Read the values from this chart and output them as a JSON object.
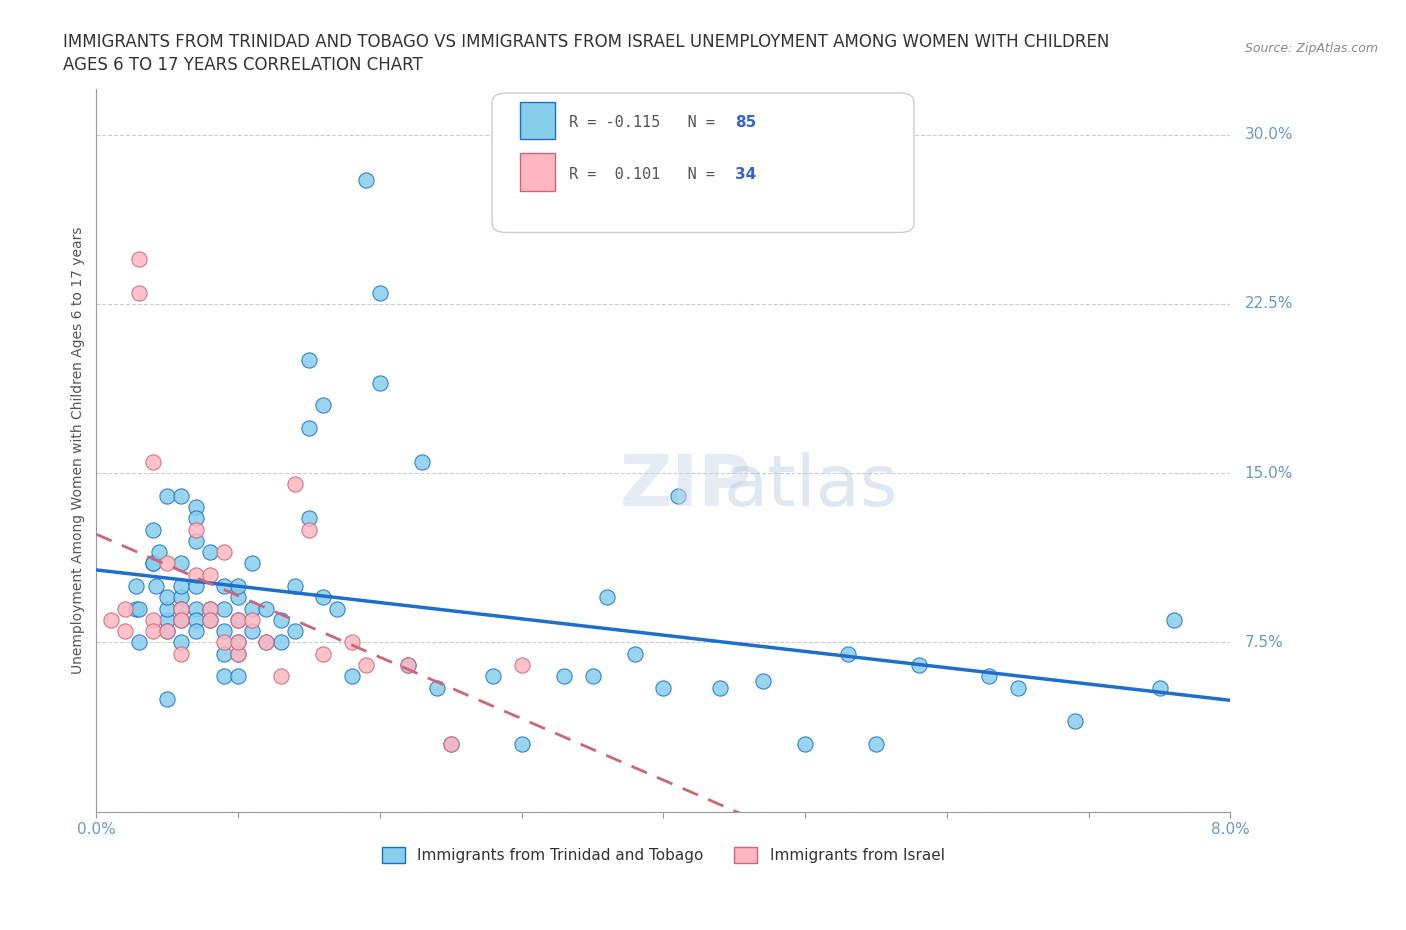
{
  "title_line1": "IMMIGRANTS FROM TRINIDAD AND TOBAGO VS IMMIGRANTS FROM ISRAEL UNEMPLOYMENT AMONG WOMEN WITH CHILDREN",
  "title_line2": "AGES 6 TO 17 YEARS CORRELATION CHART",
  "source": "Source: ZipAtlas.com",
  "xlabel": "",
  "ylabel": "Unemployment Among Women with Children Ages 6 to 17 years",
  "xlim": [
    0.0,
    0.08
  ],
  "ylim": [
    0.0,
    0.32
  ],
  "xticks": [
    0.0,
    0.01,
    0.02,
    0.03,
    0.04,
    0.05,
    0.06,
    0.07,
    0.08
  ],
  "xticklabels": [
    "0.0%",
    "",
    "",
    "",
    "",
    "",
    "",
    "",
    "8.0%"
  ],
  "ytick_positions": [
    0.0,
    0.075,
    0.15,
    0.225,
    0.3
  ],
  "ytick_labels": [
    "",
    "7.5%",
    "15.0%",
    "22.5%",
    "30.0%"
  ],
  "r_tt": -0.115,
  "n_tt": 85,
  "r_isr": 0.101,
  "n_isr": 34,
  "color_tt": "#87CEEB",
  "color_isr": "#FFB6C1",
  "color_tt_line": "#1E6FCC",
  "color_isr_line": "#CC6677",
  "legend_label_tt": "Immigrants from Trinidad and Tobago",
  "legend_label_isr": "Immigrants from Israel",
  "watermark": "ZIPatlas",
  "tt_x": [
    0.0028,
    0.0028,
    0.003,
    0.003,
    0.004,
    0.004,
    0.004,
    0.0042,
    0.0044,
    0.005,
    0.005,
    0.005,
    0.005,
    0.005,
    0.005,
    0.006,
    0.006,
    0.006,
    0.006,
    0.006,
    0.006,
    0.006,
    0.007,
    0.007,
    0.007,
    0.007,
    0.007,
    0.007,
    0.007,
    0.008,
    0.008,
    0.008,
    0.009,
    0.009,
    0.009,
    0.009,
    0.009,
    0.01,
    0.01,
    0.01,
    0.01,
    0.01,
    0.01,
    0.011,
    0.011,
    0.011,
    0.012,
    0.012,
    0.013,
    0.013,
    0.014,
    0.014,
    0.015,
    0.015,
    0.015,
    0.016,
    0.016,
    0.017,
    0.018,
    0.019,
    0.02,
    0.02,
    0.022,
    0.023,
    0.024,
    0.025,
    0.028,
    0.03,
    0.033,
    0.035,
    0.036,
    0.038,
    0.04,
    0.041,
    0.044,
    0.047,
    0.05,
    0.053,
    0.055,
    0.058,
    0.063,
    0.065,
    0.069,
    0.075,
    0.076
  ],
  "tt_y": [
    0.09,
    0.1,
    0.075,
    0.09,
    0.125,
    0.11,
    0.11,
    0.1,
    0.115,
    0.14,
    0.05,
    0.085,
    0.09,
    0.095,
    0.08,
    0.11,
    0.095,
    0.09,
    0.085,
    0.1,
    0.075,
    0.14,
    0.135,
    0.13,
    0.12,
    0.1,
    0.09,
    0.085,
    0.08,
    0.115,
    0.09,
    0.085,
    0.1,
    0.09,
    0.08,
    0.07,
    0.06,
    0.085,
    0.075,
    0.095,
    0.1,
    0.07,
    0.06,
    0.11,
    0.09,
    0.08,
    0.09,
    0.075,
    0.085,
    0.075,
    0.1,
    0.08,
    0.17,
    0.2,
    0.13,
    0.18,
    0.095,
    0.09,
    0.06,
    0.28,
    0.23,
    0.19,
    0.065,
    0.155,
    0.055,
    0.03,
    0.06,
    0.03,
    0.06,
    0.06,
    0.095,
    0.07,
    0.055,
    0.14,
    0.055,
    0.058,
    0.03,
    0.07,
    0.03,
    0.065,
    0.06,
    0.055,
    0.04,
    0.055,
    0.085
  ],
  "isr_x": [
    0.001,
    0.002,
    0.002,
    0.003,
    0.003,
    0.004,
    0.004,
    0.004,
    0.005,
    0.005,
    0.006,
    0.006,
    0.006,
    0.007,
    0.007,
    0.008,
    0.008,
    0.008,
    0.009,
    0.009,
    0.01,
    0.01,
    0.01,
    0.011,
    0.012,
    0.013,
    0.014,
    0.015,
    0.016,
    0.018,
    0.019,
    0.022,
    0.025,
    0.03
  ],
  "isr_y": [
    0.085,
    0.09,
    0.08,
    0.23,
    0.245,
    0.085,
    0.155,
    0.08,
    0.11,
    0.08,
    0.09,
    0.085,
    0.07,
    0.125,
    0.105,
    0.105,
    0.09,
    0.085,
    0.075,
    0.115,
    0.085,
    0.07,
    0.075,
    0.085,
    0.075,
    0.06,
    0.145,
    0.125,
    0.07,
    0.075,
    0.065,
    0.065,
    0.03,
    0.065
  ],
  "grid_color": "#cccccc",
  "axis_color": "#999999",
  "title_color": "#333333",
  "label_color": "#6699cc",
  "tick_label_color": "#6699cc"
}
